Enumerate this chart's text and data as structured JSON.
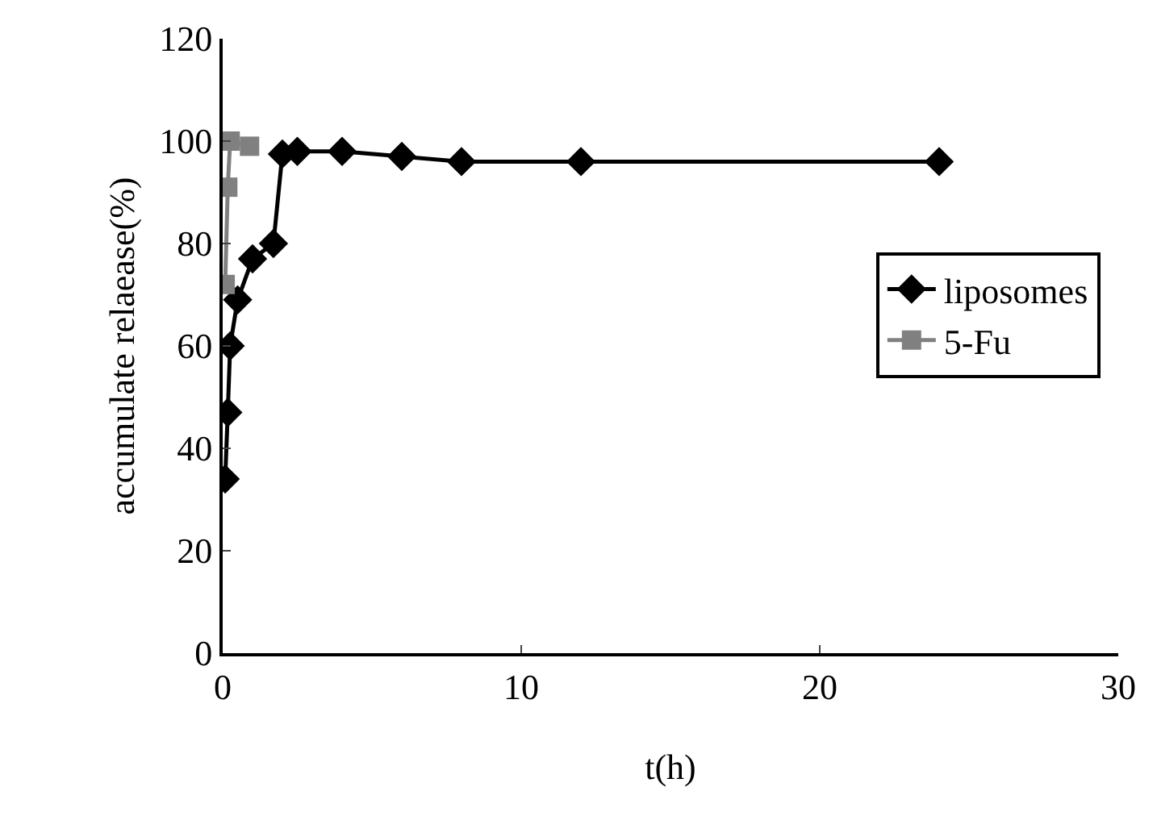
{
  "chart_data": {
    "type": "line",
    "xlabel": "t(h)",
    "ylabel": "accumulate relaease(%)",
    "xlim": [
      0,
      30
    ],
    "xticks": [
      0,
      10,
      20,
      30
    ],
    "ylim": [
      0,
      120
    ],
    "yticks": [
      0,
      20,
      40,
      60,
      80,
      100,
      120
    ],
    "grid": false,
    "legend": "right",
    "line_style": "solid",
    "series": [
      {
        "name": "liposomes",
        "color": "#000000",
        "marker": "diamond",
        "x": [
          0.083,
          0.17,
          0.25,
          0.5,
          1,
          1.7,
          2,
          2.5,
          4,
          6,
          8,
          12,
          24
        ],
        "values": [
          34,
          47,
          60,
          69,
          77,
          80,
          97.5,
          98,
          98,
          97,
          96,
          96,
          96
        ]
      },
      {
        "name": "5-Fu",
        "color": "#808080",
        "marker": "square",
        "x": [
          0.083,
          0.17,
          0.25,
          0.9
        ],
        "values": [
          72,
          91,
          100,
          99
        ]
      }
    ]
  }
}
